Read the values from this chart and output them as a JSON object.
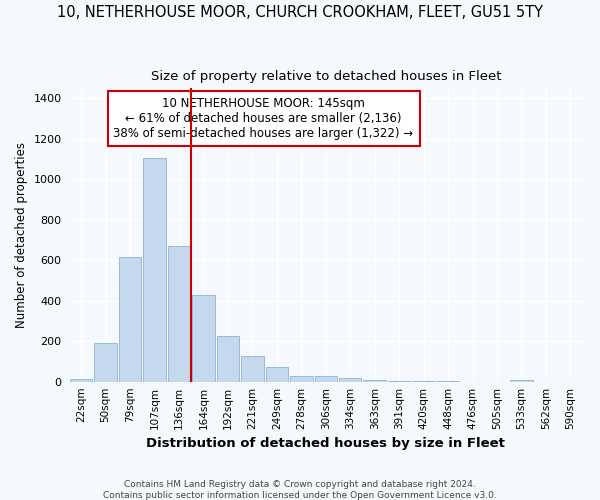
{
  "title": "10, NETHERHOUSE MOOR, CHURCH CROOKHAM, FLEET, GU51 5TY",
  "subtitle": "Size of property relative to detached houses in Fleet",
  "xlabel": "Distribution of detached houses by size in Fleet",
  "ylabel": "Number of detached properties",
  "bar_labels": [
    "22sqm",
    "50sqm",
    "79sqm",
    "107sqm",
    "136sqm",
    "164sqm",
    "192sqm",
    "221sqm",
    "249sqm",
    "278sqm",
    "306sqm",
    "334sqm",
    "363sqm",
    "391sqm",
    "420sqm",
    "448sqm",
    "476sqm",
    "505sqm",
    "533sqm",
    "562sqm",
    "590sqm"
  ],
  "bar_values": [
    15,
    190,
    615,
    1105,
    670,
    430,
    225,
    125,
    75,
    30,
    30,
    20,
    10,
    5,
    5,
    5,
    0,
    0,
    10,
    0,
    0
  ],
  "bar_color": "#c5d8ed",
  "bar_edge_color": "#8ab4d4",
  "background_color": "#f5f8fd",
  "grid_color": "#ffffff",
  "property_label": "10 NETHERHOUSE MOOR: 145sqm",
  "annotation_line1": "← 61% of detached houses are smaller (2,136)",
  "annotation_line2": "38% of semi-detached houses are larger (1,322) →",
  "vline_color": "#cc0000",
  "vline_position": 4.5,
  "ylim": [
    0,
    1450
  ],
  "yticks": [
    0,
    200,
    400,
    600,
    800,
    1000,
    1200,
    1400
  ],
  "footer_line1": "Contains HM Land Registry data © Crown copyright and database right 2024.",
  "footer_line2": "Contains public sector information licensed under the Open Government Licence v3.0.",
  "title_fontsize": 10.5,
  "subtitle_fontsize": 9.5,
  "annotation_box_color": "#ffffff",
  "annotation_box_edge": "#cc0000"
}
